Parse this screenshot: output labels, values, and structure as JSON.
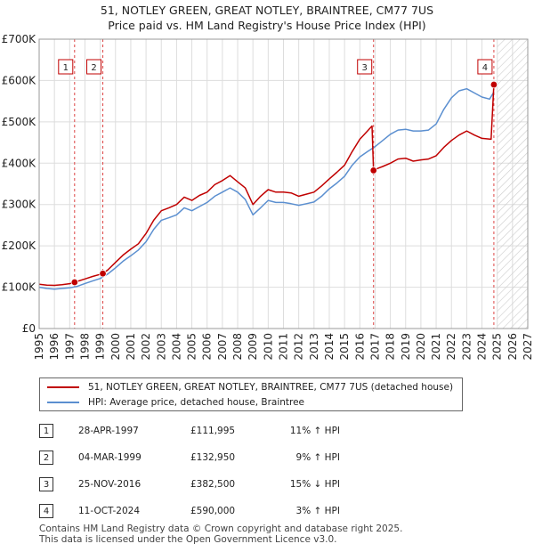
{
  "title": {
    "line1": "51, NOTLEY GREEN, GREAT NOTLEY, BRAINTREE, CM77 7US",
    "line2": "Price paid vs. HM Land Registry's House Price Index (HPI)"
  },
  "colors": {
    "property": "#c00000",
    "hpi": "#5b8fd0",
    "grid": "#dddddd",
    "marker_line": "#dd4444"
  },
  "legend": {
    "property_label": "51, NOTLEY GREEN, GREAT NOTLEY, BRAINTREE, CM77 7US (detached house)",
    "hpi_label": "HPI: Average price, detached house, Braintree"
  },
  "sales": [
    {
      "num": "1",
      "date": "28-APR-1997",
      "price": "£111,995",
      "hpi": "11% ↑ HPI"
    },
    {
      "num": "2",
      "date": "04-MAR-1999",
      "price": "£132,950",
      "hpi": "9% ↑ HPI"
    },
    {
      "num": "3",
      "date": "25-NOV-2016",
      "price": "£382,500",
      "hpi": "15% ↓ HPI"
    },
    {
      "num": "4",
      "date": "11-OCT-2024",
      "price": "£590,000",
      "hpi": "3% ↑ HPI"
    }
  ],
  "footer": {
    "line1": "Contains HM Land Registry data © Crown copyright and database right 2025.",
    "line2": "This data is licensed under the Open Government Licence v3.0."
  },
  "chart_data": {
    "type": "line",
    "title": "Price paid vs. HM Land Registry's House Price Index (HPI)",
    "xlim": [
      1995,
      2027
    ],
    "ylim": [
      0,
      700000
    ],
    "x_ticks": [
      1995,
      1996,
      1997,
      1998,
      1999,
      2000,
      2001,
      2002,
      2003,
      2004,
      2005,
      2006,
      2007,
      2008,
      2009,
      2010,
      2011,
      2012,
      2013,
      2014,
      2015,
      2016,
      2017,
      2018,
      2019,
      2020,
      2021,
      2022,
      2023,
      2024,
      2025,
      2026,
      2027
    ],
    "y_ticks": [
      {
        "value": 0,
        "label": "£0"
      },
      {
        "value": 100000,
        "label": "£100K"
      },
      {
        "value": 200000,
        "label": "£200K"
      },
      {
        "value": 300000,
        "label": "£300K"
      },
      {
        "value": 400000,
        "label": "£400K"
      },
      {
        "value": 500000,
        "label": "£500K"
      },
      {
        "value": 600000,
        "label": "£600K"
      },
      {
        "value": 700000,
        "label": "£700K"
      }
    ],
    "future_shade_from": 2025.0,
    "sales": [
      {
        "num": "1",
        "x": 1997.32,
        "y": 111995
      },
      {
        "num": "2",
        "x": 1999.17,
        "y": 132950
      },
      {
        "num": "3",
        "x": 2016.9,
        "y": 382500
      },
      {
        "num": "4",
        "x": 2024.78,
        "y": 590000
      }
    ],
    "series": [
      {
        "name": "51, NOTLEY GREEN, GREAT NOTLEY, BRAINTREE, CM77 7US (detached house)",
        "color": "#c00000",
        "points": [
          [
            1995.0,
            107000
          ],
          [
            1995.5,
            105000
          ],
          [
            1996.0,
            104500
          ],
          [
            1996.5,
            106000
          ],
          [
            1997.0,
            108500
          ],
          [
            1997.32,
            111995
          ],
          [
            1998.0,
            120000
          ],
          [
            1998.5,
            126000
          ],
          [
            1999.17,
            132950
          ],
          [
            1999.5,
            142000
          ],
          [
            2000.0,
            160000
          ],
          [
            2000.5,
            178000
          ],
          [
            2001.0,
            192000
          ],
          [
            2001.5,
            205000
          ],
          [
            2002.0,
            230000
          ],
          [
            2002.5,
            262000
          ],
          [
            2003.0,
            285000
          ],
          [
            2003.5,
            292000
          ],
          [
            2004.0,
            300000
          ],
          [
            2004.5,
            318000
          ],
          [
            2005.0,
            310000
          ],
          [
            2005.5,
            322000
          ],
          [
            2006.0,
            330000
          ],
          [
            2006.5,
            348000
          ],
          [
            2007.0,
            358000
          ],
          [
            2007.5,
            370000
          ],
          [
            2008.0,
            355000
          ],
          [
            2008.5,
            340000
          ],
          [
            2009.0,
            300000
          ],
          [
            2009.5,
            320000
          ],
          [
            2010.0,
            336000
          ],
          [
            2010.5,
            330000
          ],
          [
            2011.0,
            330000
          ],
          [
            2011.5,
            328000
          ],
          [
            2012.0,
            320000
          ],
          [
            2012.5,
            325000
          ],
          [
            2013.0,
            330000
          ],
          [
            2013.5,
            345000
          ],
          [
            2014.0,
            362000
          ],
          [
            2014.5,
            378000
          ],
          [
            2015.0,
            395000
          ],
          [
            2015.5,
            428000
          ],
          [
            2016.0,
            458000
          ],
          [
            2016.5,
            478000
          ],
          [
            2016.8,
            490000
          ],
          [
            2016.9,
            382500
          ],
          [
            2017.2,
            388000
          ],
          [
            2017.5,
            392000
          ],
          [
            2018.0,
            400000
          ],
          [
            2018.5,
            410000
          ],
          [
            2019.0,
            412000
          ],
          [
            2019.5,
            405000
          ],
          [
            2020.0,
            408000
          ],
          [
            2020.5,
            410000
          ],
          [
            2021.0,
            418000
          ],
          [
            2021.5,
            438000
          ],
          [
            2022.0,
            455000
          ],
          [
            2022.5,
            468000
          ],
          [
            2023.0,
            478000
          ],
          [
            2023.5,
            468000
          ],
          [
            2024.0,
            460000
          ],
          [
            2024.6,
            458000
          ],
          [
            2024.78,
            590000
          ]
        ]
      },
      {
        "name": "HPI: Average price, detached house, Braintree",
        "color": "#5b8fd0",
        "points": [
          [
            1995.0,
            100000
          ],
          [
            1995.5,
            97000
          ],
          [
            1996.0,
            95500
          ],
          [
            1996.5,
            97000
          ],
          [
            1997.0,
            98500
          ],
          [
            1997.5,
            102000
          ],
          [
            1998.0,
            109000
          ],
          [
            1998.5,
            115000
          ],
          [
            1999.0,
            121000
          ],
          [
            1999.5,
            132000
          ],
          [
            2000.0,
            147000
          ],
          [
            2000.5,
            163000
          ],
          [
            2001.0,
            176000
          ],
          [
            2001.5,
            190000
          ],
          [
            2002.0,
            210000
          ],
          [
            2002.5,
            240000
          ],
          [
            2003.0,
            262000
          ],
          [
            2003.5,
            268000
          ],
          [
            2004.0,
            275000
          ],
          [
            2004.5,
            292000
          ],
          [
            2005.0,
            285000
          ],
          [
            2005.5,
            295000
          ],
          [
            2006.0,
            305000
          ],
          [
            2006.5,
            320000
          ],
          [
            2007.0,
            330000
          ],
          [
            2007.5,
            340000
          ],
          [
            2008.0,
            330000
          ],
          [
            2008.5,
            312000
          ],
          [
            2009.0,
            275000
          ],
          [
            2009.5,
            292000
          ],
          [
            2010.0,
            310000
          ],
          [
            2010.5,
            305000
          ],
          [
            2011.0,
            305000
          ],
          [
            2011.5,
            302000
          ],
          [
            2012.0,
            298000
          ],
          [
            2012.5,
            302000
          ],
          [
            2013.0,
            306000
          ],
          [
            2013.5,
            320000
          ],
          [
            2014.0,
            338000
          ],
          [
            2014.5,
            352000
          ],
          [
            2015.0,
            368000
          ],
          [
            2015.5,
            395000
          ],
          [
            2016.0,
            415000
          ],
          [
            2016.5,
            428000
          ],
          [
            2017.0,
            440000
          ],
          [
            2017.5,
            455000
          ],
          [
            2018.0,
            470000
          ],
          [
            2018.5,
            480000
          ],
          [
            2019.0,
            482000
          ],
          [
            2019.5,
            478000
          ],
          [
            2020.0,
            478000
          ],
          [
            2020.5,
            480000
          ],
          [
            2021.0,
            495000
          ],
          [
            2021.5,
            530000
          ],
          [
            2022.0,
            558000
          ],
          [
            2022.5,
            575000
          ],
          [
            2023.0,
            580000
          ],
          [
            2023.5,
            570000
          ],
          [
            2024.0,
            560000
          ],
          [
            2024.5,
            555000
          ],
          [
            2024.78,
            572000
          ]
        ]
      }
    ]
  }
}
